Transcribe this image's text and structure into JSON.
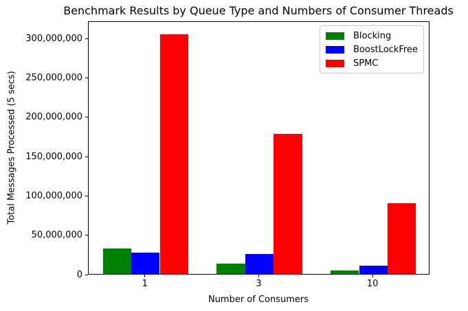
{
  "chart_data": {
    "type": "bar",
    "title": "Benchmark Results by Queue Type and Numbers of Consumer Threads",
    "xlabel": "Number of Consumers",
    "ylabel": "Total Messages Processed (5 secs)",
    "categories": [
      "1",
      "3",
      "10"
    ],
    "series": [
      {
        "name": "Blocking",
        "color": "#008000",
        "values": [
          32000000,
          13000000,
          4300000
        ]
      },
      {
        "name": "BoostLockFree",
        "color": "#0000ff",
        "values": [
          27000000,
          25000000,
          10500000
        ]
      },
      {
        "name": "SPMC",
        "color": "#ff0000",
        "values": [
          305000000,
          178000000,
          90000000
        ]
      }
    ],
    "ylim": [
      0,
      322000000
    ],
    "yticks": [
      {
        "value": 0,
        "label": "0"
      },
      {
        "value": 50000000,
        "label": "50,000,000"
      },
      {
        "value": 100000000,
        "label": "100,000,000"
      },
      {
        "value": 150000000,
        "label": "150,000,000"
      },
      {
        "value": 200000000,
        "label": "200,000,000"
      },
      {
        "value": 250000000,
        "label": "250,000,000"
      },
      {
        "value": 300000000,
        "label": "300,000,000"
      }
    ],
    "grid": false,
    "legend_position": "upper right"
  }
}
